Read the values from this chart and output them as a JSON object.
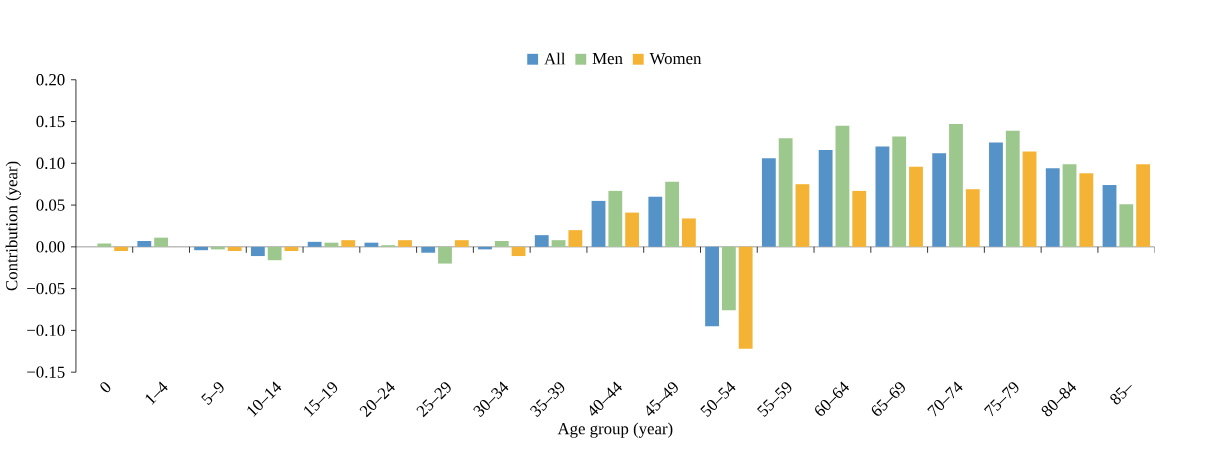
{
  "chart_data": {
    "type": "bar",
    "xlabel": "Age group (year)",
    "ylabel": "Contribution (year)",
    "categories": [
      "0",
      "1–4",
      "5–9",
      "10–14",
      "15–19",
      "20–24",
      "25–29",
      "30–34",
      "35–39",
      "40–44",
      "45–49",
      "50–54",
      "55–59",
      "60–64",
      "65–69",
      "70–74",
      "75–79",
      "80–84",
      "85–"
    ],
    "series": [
      {
        "name": "All",
        "color": "#5592c8",
        "values": [
          0,
          0.007,
          -0.004,
          -0.011,
          0.006,
          0.005,
          -0.007,
          -0.003,
          0.014,
          0.055,
          0.06,
          -0.095,
          0.106,
          0.116,
          0.12,
          0.112,
          0.125,
          0.094,
          0.074
        ]
      },
      {
        "name": "Men",
        "color": "#9dc88d",
        "values": [
          0.004,
          0.011,
          -0.003,
          -0.016,
          0.005,
          0.002,
          -0.02,
          0.007,
          0.008,
          0.067,
          0.078,
          -0.076,
          0.13,
          0.145,
          0.132,
          0.147,
          0.139,
          0.099,
          0.051
        ]
      },
      {
        "name": "Women",
        "color": "#f5b335",
        "values": [
          -0.005,
          0,
          -0.005,
          -0.005,
          0.008,
          0.008,
          0.008,
          -0.011,
          0.02,
          0.041,
          0.034,
          -0.122,
          0.075,
          0.067,
          0.096,
          0.069,
          0.114,
          0.088,
          0.099
        ]
      }
    ],
    "ylim": [
      -0.15,
      0.2
    ],
    "yticks": [
      {
        "value": -0.15,
        "label": "−0.15"
      },
      {
        "value": -0.1,
        "label": "−0.10"
      },
      {
        "value": -0.05,
        "label": "−0.05"
      },
      {
        "value": 0,
        "label": "0.00"
      },
      {
        "value": 0.05,
        "label": "0.05"
      },
      {
        "value": 0.1,
        "label": "0.10"
      },
      {
        "value": 0.15,
        "label": "0.15"
      },
      {
        "value": 0.2,
        "label": "0.20"
      }
    ],
    "legend": "top"
  }
}
